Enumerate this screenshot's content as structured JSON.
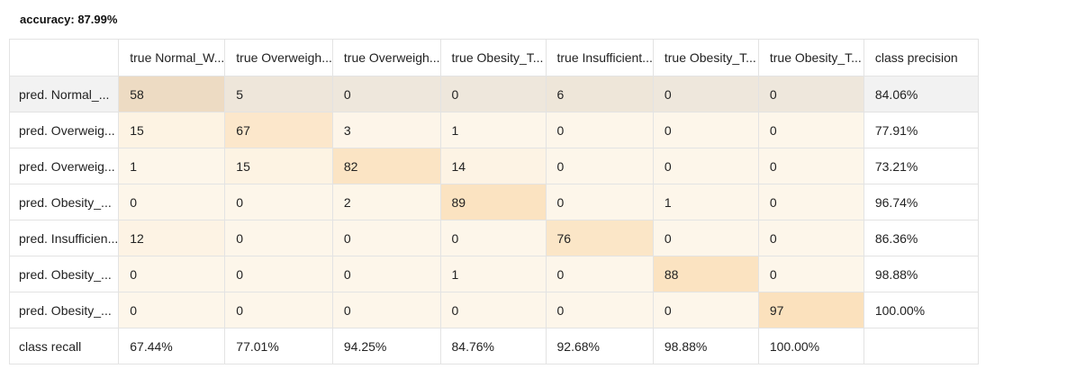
{
  "accuracy_label": "accuracy: 87.99%",
  "header": {
    "corner": "",
    "columns": [
      "true Normal_W...",
      "true Overweigh...",
      "true Overweigh...",
      "true Obesity_T...",
      "true Insufficient...",
      "true Obesity_T...",
      "true Obesity_T..."
    ],
    "precision_label": "class precision"
  },
  "rows": [
    {
      "label": "pred. Normal_...",
      "values": [
        "58",
        "5",
        "0",
        "0",
        "6",
        "0",
        "0"
      ],
      "precision": "84.06%"
    },
    {
      "label": "pred. Overweig...",
      "values": [
        "15",
        "67",
        "3",
        "1",
        "0",
        "0",
        "0"
      ],
      "precision": "77.91%"
    },
    {
      "label": "pred. Overweig...",
      "values": [
        "1",
        "15",
        "82",
        "14",
        "0",
        "0",
        "0"
      ],
      "precision": "73.21%"
    },
    {
      "label": "pred. Obesity_...",
      "values": [
        "0",
        "0",
        "2",
        "89",
        "0",
        "1",
        "0"
      ],
      "precision": "96.74%"
    },
    {
      "label": "pred. Insufficien...",
      "values": [
        "12",
        "0",
        "0",
        "0",
        "76",
        "0",
        "0"
      ],
      "precision": "86.36%"
    },
    {
      "label": "pred. Obesity_...",
      "values": [
        "0",
        "0",
        "0",
        "1",
        "0",
        "88",
        "0"
      ],
      "precision": "98.88%"
    },
    {
      "label": "pred. Obesity_...",
      "values": [
        "0",
        "0",
        "0",
        "0",
        "0",
        "0",
        "97"
      ],
      "precision": "100.00%"
    }
  ],
  "recall": {
    "label": "class recall",
    "values": [
      "67.44%",
      "77.01%",
      "94.25%",
      "84.76%",
      "92.68%",
      "98.88%",
      "100.00%"
    ],
    "corner": ""
  },
  "colors": {
    "cell_zero": "#fdf6ea",
    "cell_max": "#fbe1bd",
    "selected_row": "#f2f2f2",
    "grid": "#e3e3e3"
  },
  "selected_row_index": 0
}
